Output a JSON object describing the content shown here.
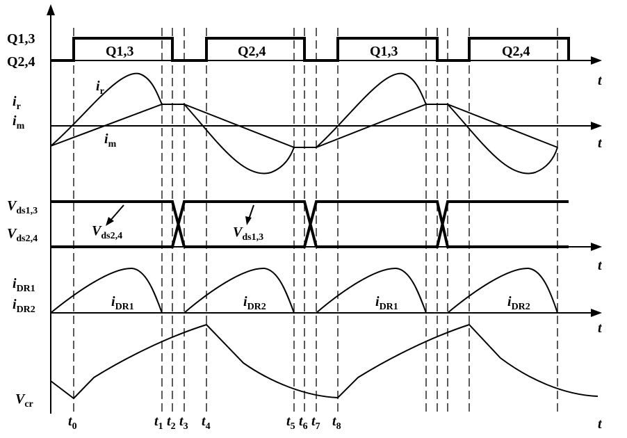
{
  "axis_labels": {
    "q13": "Q1,3",
    "q24": "Q2,4"
  },
  "gate_labels": [
    "Q1,3",
    "Q2,4",
    "Q1,3",
    "Q2,4"
  ],
  "t_labels": [
    "t",
    "t",
    "t",
    "t",
    "t"
  ],
  "signals": {
    "ir_axis": {
      "main": "i",
      "sub": "r"
    },
    "im_axis": {
      "main": "i",
      "sub": "m"
    },
    "ir": {
      "main": "i",
      "sub": "r"
    },
    "im": {
      "main": "i",
      "sub": "m"
    },
    "vds13_axis": {
      "main": "V",
      "sub": "ds1,3"
    },
    "vds24_axis": {
      "main": "V",
      "sub": "ds2,4"
    },
    "vds24": {
      "main": "V",
      "sub": "ds2,4"
    },
    "vds13": {
      "main": "V",
      "sub": "ds1,3"
    },
    "idr1_axis": {
      "main": "i",
      "sub": "DR1"
    },
    "idr2_axis": {
      "main": "i",
      "sub": "DR2"
    },
    "idr_labels": [
      {
        "main": "i",
        "sub": "DR1"
      },
      {
        "main": "i",
        "sub": "DR2"
      },
      {
        "main": "i",
        "sub": "DR1"
      },
      {
        "main": "i",
        "sub": "DR2"
      }
    ],
    "vcr_axis": {
      "main": "V",
      "sub": "cr"
    }
  },
  "time_labels": [
    {
      "main": "t",
      "sub": "0"
    },
    {
      "main": "t",
      "sub": "1"
    },
    {
      "main": "t",
      "sub": "2"
    },
    {
      "main": "t",
      "sub": "3"
    },
    {
      "main": "t",
      "sub": "4"
    },
    {
      "main": "t",
      "sub": "5"
    },
    {
      "main": "t",
      "sub": "6"
    },
    {
      "main": "t",
      "sub": "7"
    },
    {
      "main": "t",
      "sub": "8"
    }
  ]
}
